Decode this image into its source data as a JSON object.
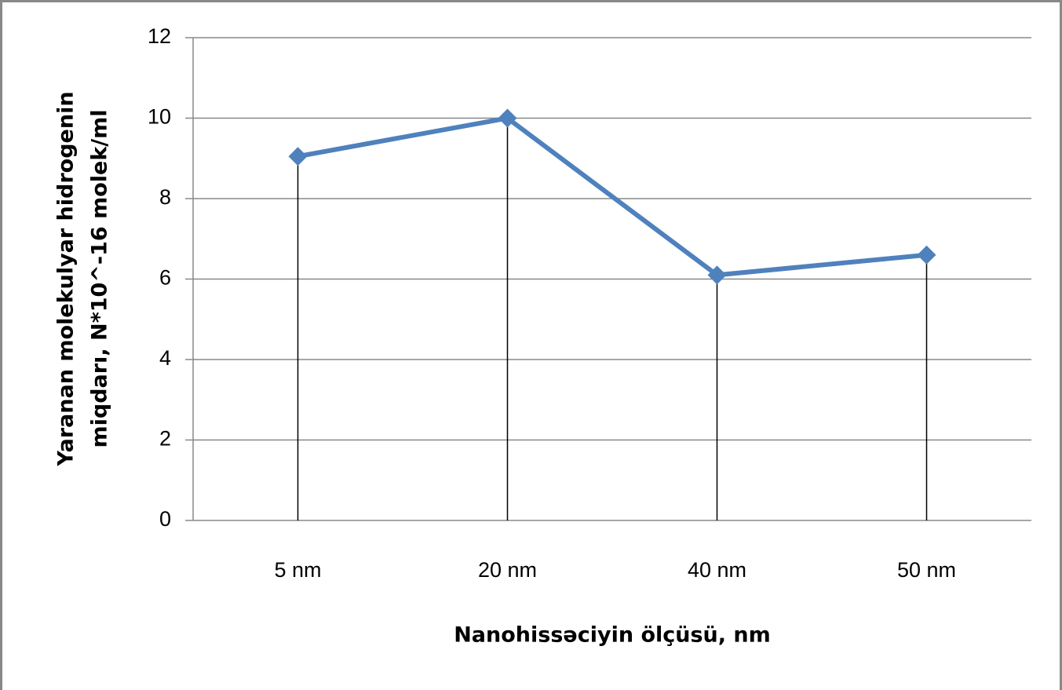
{
  "chart_data": {
    "type": "line",
    "ylabel": [
      "Yaranan molekulyar hidrogenin",
      "miqdarı, N*10^-16 molek/ml"
    ],
    "xlabel": "Nanohissəciyin ölçüsü, nm",
    "categories": [
      "5 nm",
      "20 nm",
      "40 nm",
      "50 nm"
    ],
    "series": [
      {
        "color": "#4f81bd",
        "values": [
          9.05,
          10,
          6.1,
          6.6
        ]
      }
    ],
    "ylim": [
      0,
      12
    ],
    "yticks": [
      0,
      2,
      4,
      6,
      8,
      10,
      12
    ],
    "grid": true,
    "drop_lines": true
  }
}
